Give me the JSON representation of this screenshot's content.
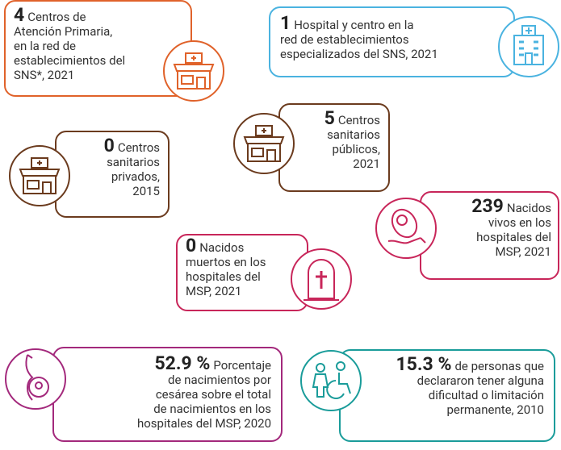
{
  "cards": [
    {
      "value": "4",
      "lines": [
        "Centros de",
        "Atención Primaria,",
        "en la red de",
        "establecimientos del",
        "SNS*, 2021"
      ]
    },
    {
      "value": "1",
      "lines": [
        "Hospital y centro en la",
        "red de establecimientos",
        "especializados del SNS, 2021"
      ]
    },
    {
      "value": "5",
      "lines": [
        "Centros",
        "sanitarios",
        "públicos,",
        "2021"
      ]
    },
    {
      "value": "0",
      "lines": [
        "Centros",
        "sanitarios",
        "privados,",
        "2015"
      ]
    },
    {
      "value": "239",
      "lines": [
        "Nacidos",
        "vivos en los",
        "hospitales del",
        "MSP, 2021"
      ]
    },
    {
      "value": "0",
      "lines": [
        "Nacidos",
        "muertos en los",
        "hospitales del",
        "MSP, 2021"
      ]
    },
    {
      "value": "52.9 %",
      "lines": [
        "Porcentaje",
        "de nacimientos por",
        "cesárea sobre el total",
        "de nacimientos en los",
        "hospitales del MSP, 2020"
      ]
    },
    {
      "value": "15.3 %",
      "lines": [
        "de personas que",
        "declararon tener alguna",
        "dificultad o limitación",
        "permanente, 2010"
      ]
    }
  ]
}
